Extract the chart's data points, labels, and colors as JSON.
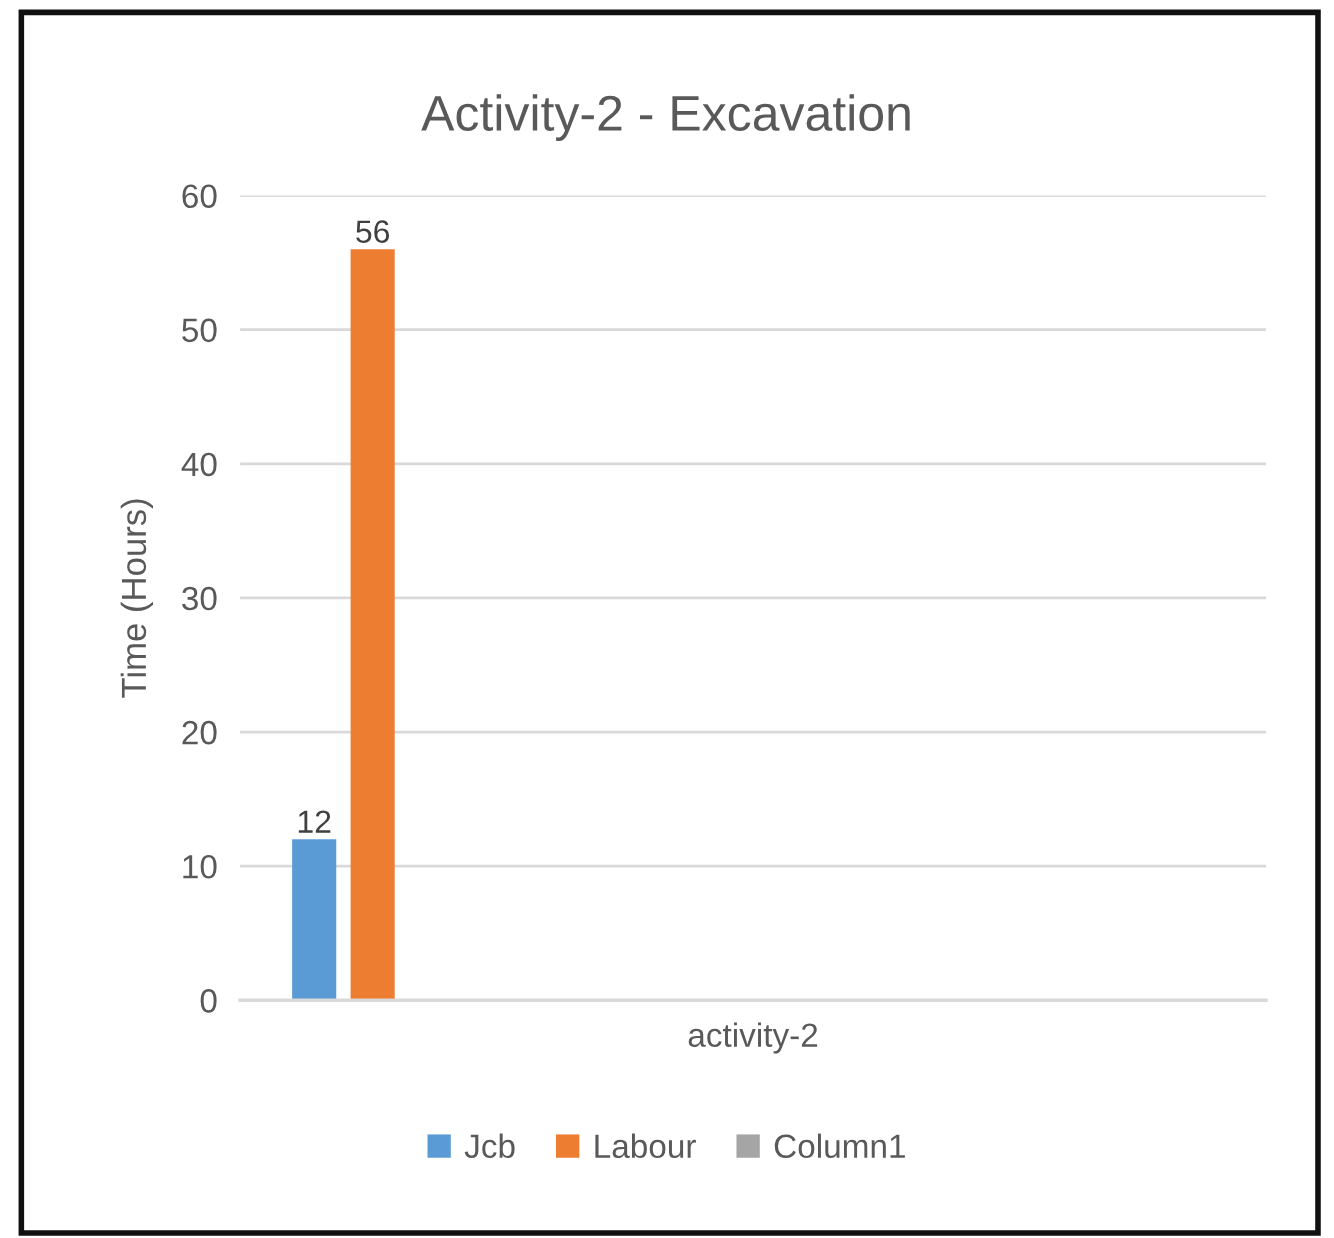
{
  "chart_data": {
    "type": "bar",
    "title": "Activity-2 - Excavation",
    "ylabel": "Time (Hours)",
    "categories": [
      "activity-2"
    ],
    "series": [
      {
        "name": "Jcb",
        "color": "#5b9bd5",
        "values": [
          12
        ]
      },
      {
        "name": "Labour",
        "color": "#ed7d31",
        "values": [
          56
        ]
      },
      {
        "name": "Column1",
        "color": "#a5a5a5",
        "values": [
          null
        ]
      }
    ],
    "ylim": [
      0,
      60
    ],
    "yticks": [
      0,
      10,
      20,
      30,
      40,
      50,
      60
    ],
    "grid": "y",
    "legend": "bottom",
    "data_labels": true
  }
}
